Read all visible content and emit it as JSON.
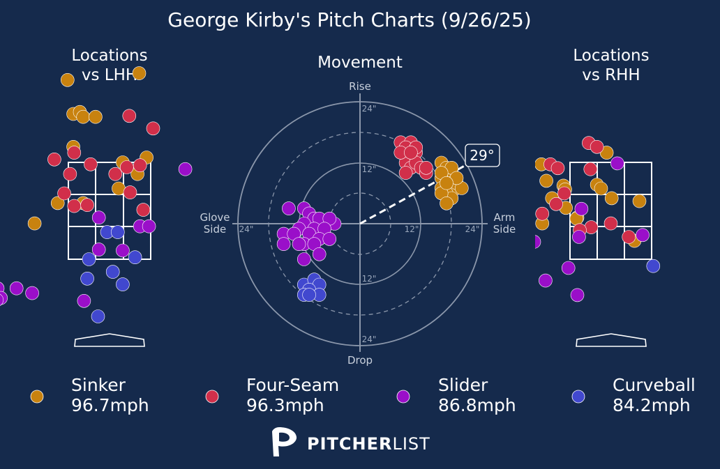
{
  "colors": {
    "background": "#152a4c",
    "sinker": "#c8820f",
    "four_seam": "#d12f4a",
    "slider": "#9a0fc9",
    "curveball": "#4148cf"
  },
  "header": {
    "title": "George Kirby's Pitch Charts (9/26/25)"
  },
  "panels": {
    "lhh": {
      "title_line1": "Locations",
      "title_line2": "vs LHH"
    },
    "movement": {
      "title": "Movement"
    },
    "rhh": {
      "title_line1": "Locations",
      "title_line2": "vs RHH"
    }
  },
  "movement_axes": {
    "top": "Rise",
    "bottom": "Drop",
    "left_line1": "Glove",
    "left_line2": "Side",
    "right_line1": "Arm",
    "right_line2": "Side",
    "ring_labels": [
      "12\"",
      "24\""
    ],
    "arm_angle": "29°"
  },
  "legend": [
    {
      "key": "sinker",
      "name": "Sinker",
      "velo": "96.7mph"
    },
    {
      "key": "four_seam",
      "name": "Four-Seam",
      "velo": "96.3mph"
    },
    {
      "key": "slider",
      "name": "Slider",
      "velo": "86.8mph"
    },
    {
      "key": "curveball",
      "name": "Curveball",
      "velo": "84.2mph"
    }
  ],
  "brand": {
    "part1": "PITCHER",
    "part2": "LIST"
  },
  "chart_data": [
    {
      "type": "scatter",
      "title": "Locations vs LHH",
      "units": "zone fraction (0-1 across/up strike zone)",
      "series": [
        {
          "name": "Sinker",
          "points": [
            [
              -0.01,
              1.85
            ],
            [
              0.06,
              1.5
            ],
            [
              0.14,
              1.52
            ],
            [
              0.18,
              1.47
            ],
            [
              0.33,
              1.47
            ],
            [
              0.06,
              1.16
            ],
            [
              0.86,
              1.92
            ],
            [
              0.66,
              1.0
            ],
            [
              0.95,
              1.05
            ],
            [
              0.84,
              0.88
            ],
            [
              0.61,
              0.73
            ],
            [
              -0.13,
              0.58
            ],
            [
              0.18,
              0.58
            ],
            [
              -0.41,
              0.37
            ]
          ]
        },
        {
          "name": "Four-Seam",
          "points": [
            [
              -0.17,
              1.03
            ],
            [
              0.07,
              1.1
            ],
            [
              0.27,
              0.98
            ],
            [
              0.74,
              1.48
            ],
            [
              1.03,
              1.35
            ],
            [
              0.87,
              0.97
            ],
            [
              0.71,
              0.95
            ],
            [
              0.57,
              0.88
            ],
            [
              -0.05,
              0.68
            ],
            [
              0.07,
              0.55
            ],
            [
              0.23,
              0.56
            ],
            [
              0.75,
              0.69
            ],
            [
              0.91,
              0.51
            ],
            [
              0.02,
              0.88
            ]
          ]
        },
        {
          "name": "Slider",
          "points": [
            [
              1.42,
              0.93
            ],
            [
              0.87,
              0.34
            ],
            [
              0.98,
              0.34
            ],
            [
              0.37,
              0.43
            ],
            [
              0.37,
              0.1
            ],
            [
              0.66,
              0.09
            ],
            [
              -0.86,
              -0.3
            ],
            [
              -0.63,
              -0.3
            ],
            [
              -0.82,
              -0.4
            ],
            [
              -0.44,
              -0.35
            ],
            [
              -0.87,
              -0.42
            ],
            [
              0.19,
              -0.43
            ]
          ]
        },
        {
          "name": "Curveball",
          "points": [
            [
              0.47,
              0.28
            ],
            [
              0.6,
              0.28
            ],
            [
              0.81,
              0.02
            ],
            [
              0.25,
              0.0
            ],
            [
              0.54,
              -0.13
            ],
            [
              0.23,
              -0.2
            ],
            [
              0.66,
              -0.26
            ],
            [
              0.36,
              -0.59
            ]
          ]
        }
      ]
    },
    {
      "type": "scatter",
      "title": "Movement",
      "xlabel": "Arm Side (+) / Glove Side (-), inches",
      "ylabel": "Rise (+) / Drop (-), inches",
      "xlim": [
        -24,
        24
      ],
      "ylim": [
        -24,
        24
      ],
      "arm_angle_deg": 29,
      "series": [
        {
          "name": "Sinker",
          "values": [
            [
              16,
              12
            ],
            [
              17,
              11
            ],
            [
              18,
              10
            ],
            [
              17,
              9
            ],
            [
              18,
              8
            ],
            [
              19,
              7
            ],
            [
              16,
              9
            ],
            [
              16,
              7
            ],
            [
              17,
              6
            ],
            [
              18,
              5
            ],
            [
              19,
              8
            ],
            [
              20,
              7
            ],
            [
              16,
              6
            ],
            [
              17,
              4
            ],
            [
              18,
              11
            ],
            [
              16,
              10
            ],
            [
              19,
              9
            ],
            [
              17,
              8
            ]
          ]
        },
        {
          "name": "Four-Seam",
          "values": [
            [
              8,
              16
            ],
            [
              10,
              16
            ],
            [
              9,
              15
            ],
            [
              11,
              14
            ],
            [
              10,
              13
            ],
            [
              9,
              12
            ],
            [
              10,
              11
            ],
            [
              11,
              12
            ],
            [
              9,
              10
            ],
            [
              12,
              11
            ],
            [
              13,
              10
            ],
            [
              8,
              14
            ],
            [
              11,
              15
            ],
            [
              10,
              14
            ],
            [
              13,
              11
            ]
          ]
        },
        {
          "name": "Slider",
          "values": [
            [
              -14,
              3
            ],
            [
              -11,
              3
            ],
            [
              -10,
              2
            ],
            [
              -9,
              1
            ],
            [
              -8,
              1
            ],
            [
              -5,
              0
            ],
            [
              -6,
              1
            ],
            [
              -11,
              0
            ],
            [
              -9,
              -1
            ],
            [
              -12,
              -1
            ],
            [
              -15,
              -2
            ],
            [
              -13,
              -2
            ],
            [
              -10,
              -2
            ],
            [
              -7,
              -1
            ],
            [
              -8,
              -3
            ],
            [
              -6,
              -3
            ],
            [
              -11,
              -4
            ],
            [
              -15,
              -4
            ],
            [
              -12,
              -4
            ],
            [
              -9,
              -4
            ],
            [
              -8,
              -6
            ],
            [
              -11,
              -7
            ]
          ]
        },
        {
          "name": "Curveball",
          "values": [
            [
              -11,
              -12
            ],
            [
              -9,
              -11
            ],
            [
              -8,
              -12
            ],
            [
              -10,
              -13
            ],
            [
              -8,
              -14
            ],
            [
              -11,
              -14
            ],
            [
              -10,
              -14
            ]
          ]
        }
      ]
    },
    {
      "type": "scatter",
      "title": "Locations vs RHH",
      "units": "zone fraction (0-1 across/up strike zone)",
      "series": [
        {
          "name": "Sinker",
          "points": [
            [
              -0.35,
              0.98
            ],
            [
              -0.29,
              0.81
            ],
            [
              -0.08,
              0.76
            ],
            [
              0.45,
              1.1
            ],
            [
              0.33,
              0.77
            ],
            [
              0.38,
              0.73
            ],
            [
              0.51,
              0.63
            ],
            [
              0.85,
              0.6
            ],
            [
              -0.22,
              0.63
            ],
            [
              -0.05,
              0.53
            ],
            [
              0.09,
              0.43
            ],
            [
              -0.34,
              0.37
            ],
            [
              0.79,
              0.19
            ],
            [
              0.08,
              0.42
            ],
            [
              -0.06,
              0.72
            ]
          ]
        },
        {
          "name": "Four-Seam",
          "values": [],
          "points": [
            [
              0.23,
              1.2
            ],
            [
              0.33,
              1.16
            ],
            [
              0.25,
              0.93
            ],
            [
              -0.24,
              0.98
            ],
            [
              -0.15,
              0.94
            ],
            [
              -0.07,
              0.68
            ],
            [
              -0.17,
              0.57
            ],
            [
              -0.34,
              0.47
            ],
            [
              0.26,
              0.33
            ],
            [
              0.5,
              0.37
            ],
            [
              0.72,
              0.23
            ],
            [
              0.12,
              0.3
            ]
          ]
        },
        {
          "name": "Slider",
          "points": [
            [
              0.58,
              0.99
            ],
            [
              0.14,
              0.52
            ],
            [
              0.11,
              0.23
            ],
            [
              0.89,
              0.25
            ],
            [
              -0.44,
              0.18
            ],
            [
              -0.02,
              -0.09
            ],
            [
              -0.3,
              -0.22
            ],
            [
              0.09,
              -0.37
            ]
          ]
        },
        {
          "name": "Curveball",
          "points": [
            [
              1.02,
              -0.07
            ]
          ]
        }
      ]
    }
  ]
}
